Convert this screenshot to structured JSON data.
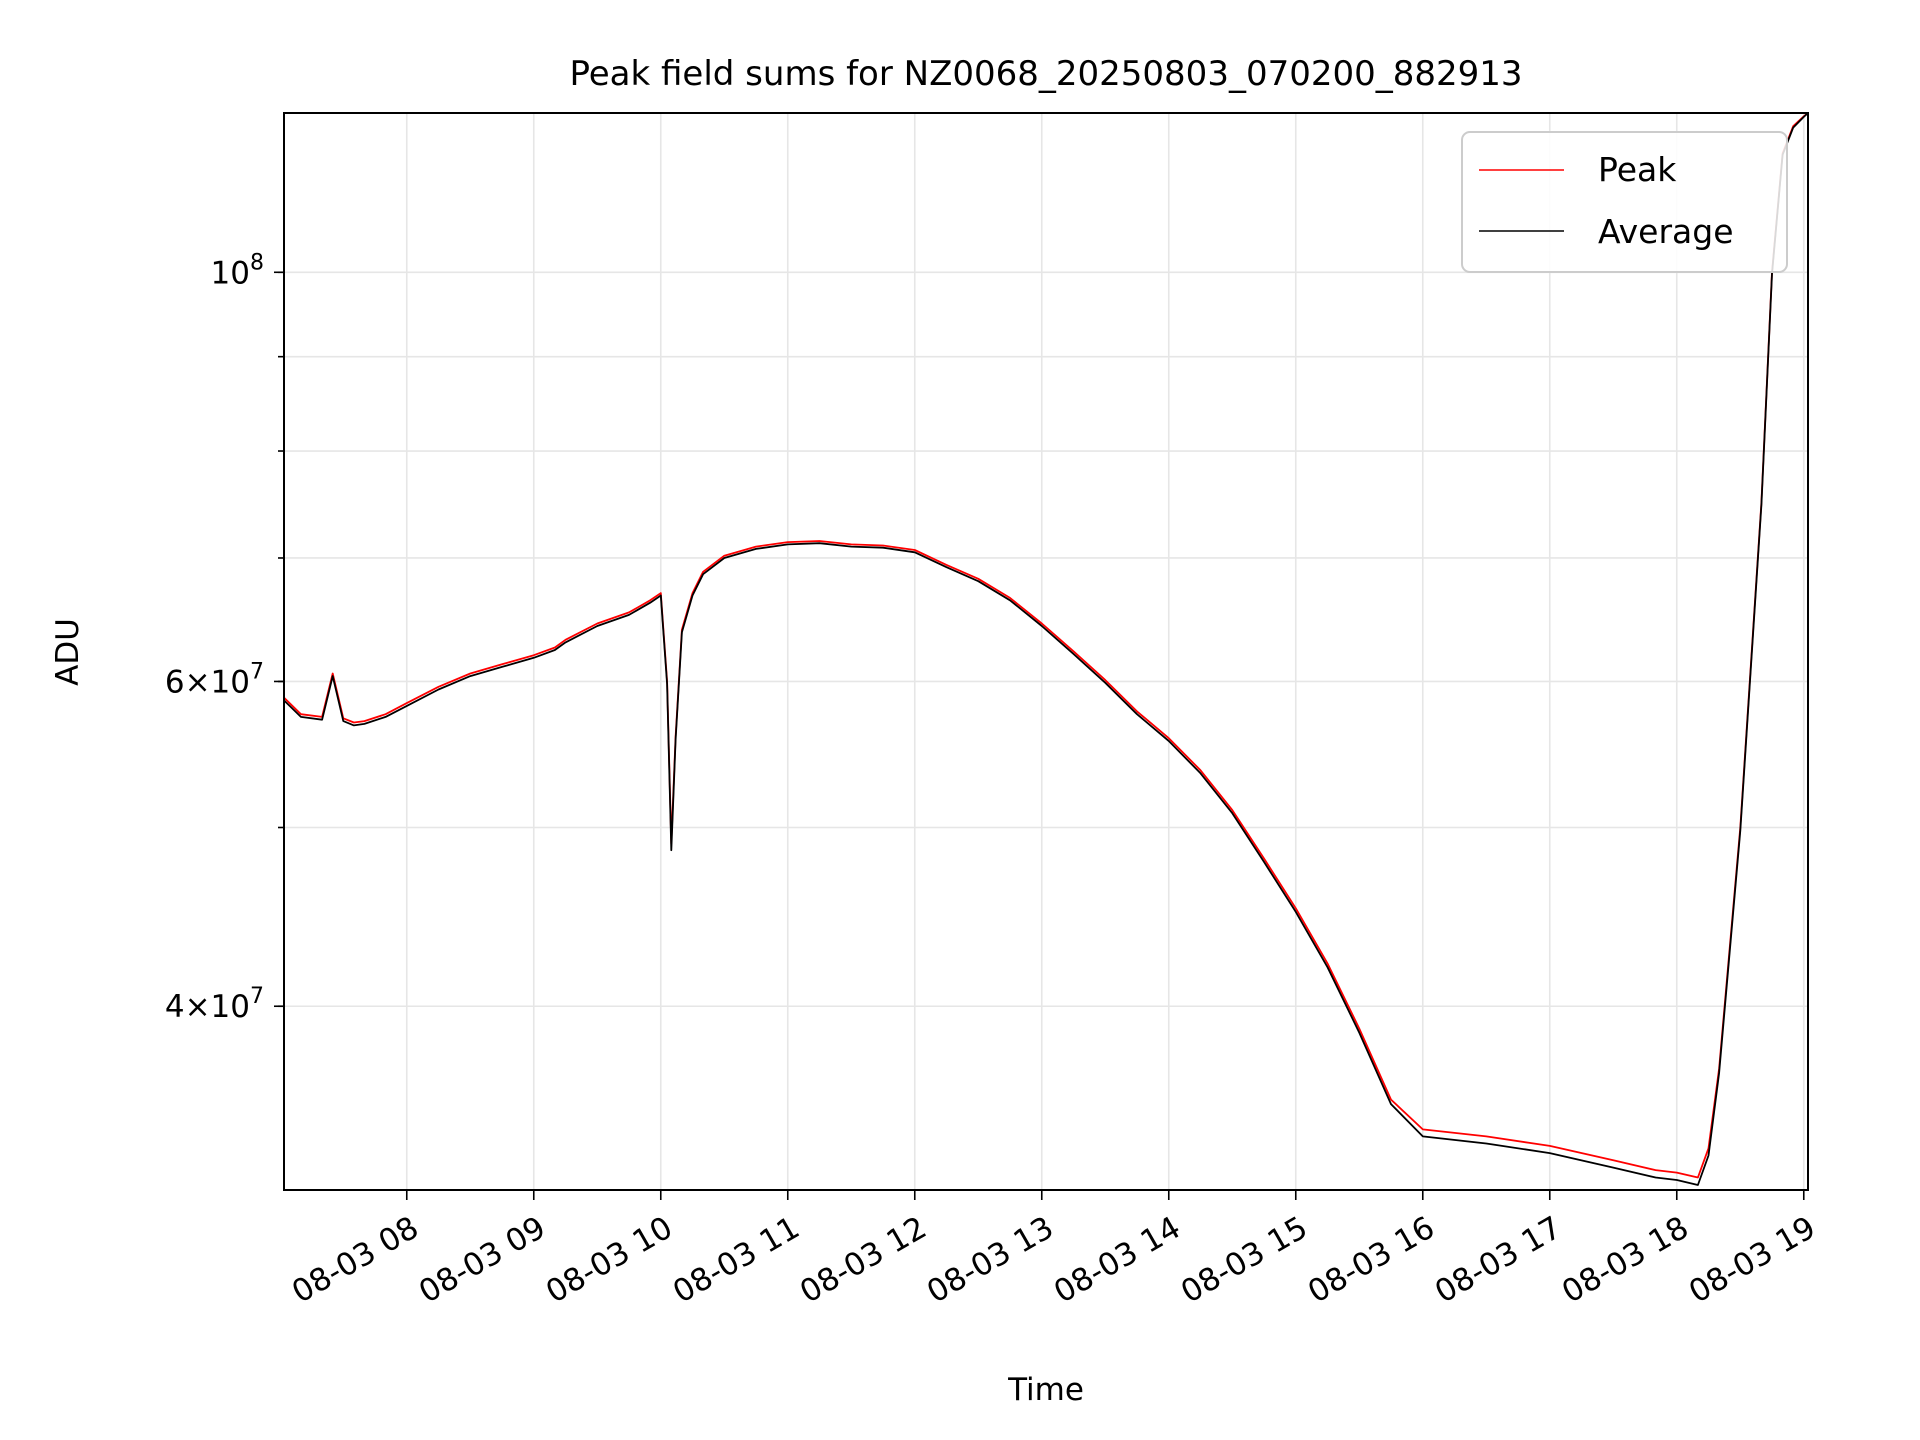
{
  "chart_data": {
    "type": "line",
    "title": "Peak field sums for NZ0068_20250803_070200_882913",
    "xlabel": "Time",
    "ylabel": "ADU",
    "xlim": [
      "2025-08-03 07:02",
      "2025-08-03 19:02"
    ],
    "ylim": [
      31800000,
      122000000
    ],
    "yscale": "log",
    "grid": true,
    "legend_position": "upper right",
    "x_tick_labels": [
      "08-03 08",
      "08-03 09",
      "08-03 10",
      "08-03 11",
      "08-03 12",
      "08-03 13",
      "08-03 14",
      "08-03 15",
      "08-03 16",
      "08-03 17",
      "08-03 18",
      "08-03 19"
    ],
    "y_tick_labels": [
      {
        "value": 40000000,
        "mantissa": "4",
        "exponent": "7"
      },
      {
        "value": 60000000,
        "mantissa": "6",
        "exponent": "7"
      },
      {
        "value": 100000000,
        "mantissa": "",
        "exponent": "8"
      }
    ],
    "x": [
      "2025-08-03 07:02",
      "2025-08-03 07:10",
      "2025-08-03 07:20",
      "2025-08-03 07:25",
      "2025-08-03 07:30",
      "2025-08-03 07:35",
      "2025-08-03 07:40",
      "2025-08-03 07:50",
      "2025-08-03 08:00",
      "2025-08-03 08:15",
      "2025-08-03 08:30",
      "2025-08-03 08:45",
      "2025-08-03 09:00",
      "2025-08-03 09:10",
      "2025-08-03 09:15",
      "2025-08-03 09:30",
      "2025-08-03 09:45",
      "2025-08-03 09:55",
      "2025-08-03 10:00",
      "2025-08-03 10:03",
      "2025-08-03 10:05",
      "2025-08-03 10:07",
      "2025-08-03 10:10",
      "2025-08-03 10:15",
      "2025-08-03 10:20",
      "2025-08-03 10:30",
      "2025-08-03 10:45",
      "2025-08-03 11:00",
      "2025-08-03 11:15",
      "2025-08-03 11:30",
      "2025-08-03 11:45",
      "2025-08-03 12:00",
      "2025-08-03 12:15",
      "2025-08-03 12:30",
      "2025-08-03 12:45",
      "2025-08-03 13:00",
      "2025-08-03 13:15",
      "2025-08-03 13:30",
      "2025-08-03 13:45",
      "2025-08-03 14:00",
      "2025-08-03 14:15",
      "2025-08-03 14:30",
      "2025-08-03 14:45",
      "2025-08-03 15:00",
      "2025-08-03 15:15",
      "2025-08-03 15:30",
      "2025-08-03 15:45",
      "2025-08-03 16:00",
      "2025-08-03 16:30",
      "2025-08-03 17:00",
      "2025-08-03 17:30",
      "2025-08-03 17:50",
      "2025-08-03 18:00",
      "2025-08-03 18:10",
      "2025-08-03 18:15",
      "2025-08-03 18:20",
      "2025-08-03 18:30",
      "2025-08-03 18:40",
      "2025-08-03 18:45",
      "2025-08-03 18:50",
      "2025-08-03 18:55",
      "2025-08-03 19:00",
      "2025-08-03 19:02"
    ],
    "series": [
      {
        "name": "Peak",
        "color": "#ff0000",
        "values": [
          58800000,
          57600000,
          57400000,
          60600000,
          57300000,
          57000000,
          57100000,
          57600000,
          58400000,
          59600000,
          60600000,
          61300000,
          62000000,
          62600000,
          63200000,
          64500000,
          65400000,
          66400000,
          67000000,
          60000000,
          49000000,
          56000000,
          64000000,
          67000000,
          68800000,
          70200000,
          71000000,
          71400000,
          71500000,
          71200000,
          71100000,
          70700000,
          69400000,
          68200000,
          66600000,
          64500000,
          62300000,
          60100000,
          57800000,
          55900000,
          53700000,
          51100000,
          48100000,
          45200000,
          42200000,
          38900000,
          35600000,
          34300000,
          34000000,
          33600000,
          33000000,
          32600000,
          32500000,
          32300000,
          33500000,
          37000000,
          50000000,
          75000000,
          100000000,
          116000000,
          120000000,
          121500000,
          122000000
        ]
      },
      {
        "name": "Average",
        "color": "#000000",
        "values": [
          58600000,
          57400000,
          57200000,
          60400000,
          57100000,
          56800000,
          56900000,
          57400000,
          58200000,
          59400000,
          60400000,
          61100000,
          61800000,
          62400000,
          63000000,
          64300000,
          65200000,
          66200000,
          66800000,
          59800000,
          48600000,
          55800000,
          63800000,
          66800000,
          68600000,
          70000000,
          70800000,
          71200000,
          71300000,
          71000000,
          70900000,
          70500000,
          69200000,
          68000000,
          66400000,
          64300000,
          62100000,
          59900000,
          57600000,
          55700000,
          53500000,
          50900000,
          47900000,
          45000000,
          42000000,
          38700000,
          35400000,
          34000000,
          33700000,
          33300000,
          32700000,
          32300000,
          32200000,
          32000000,
          33200000,
          36800000,
          49800000,
          74800000,
          99800000,
          115800000,
          119800000,
          121400000,
          122000000
        ]
      }
    ]
  }
}
